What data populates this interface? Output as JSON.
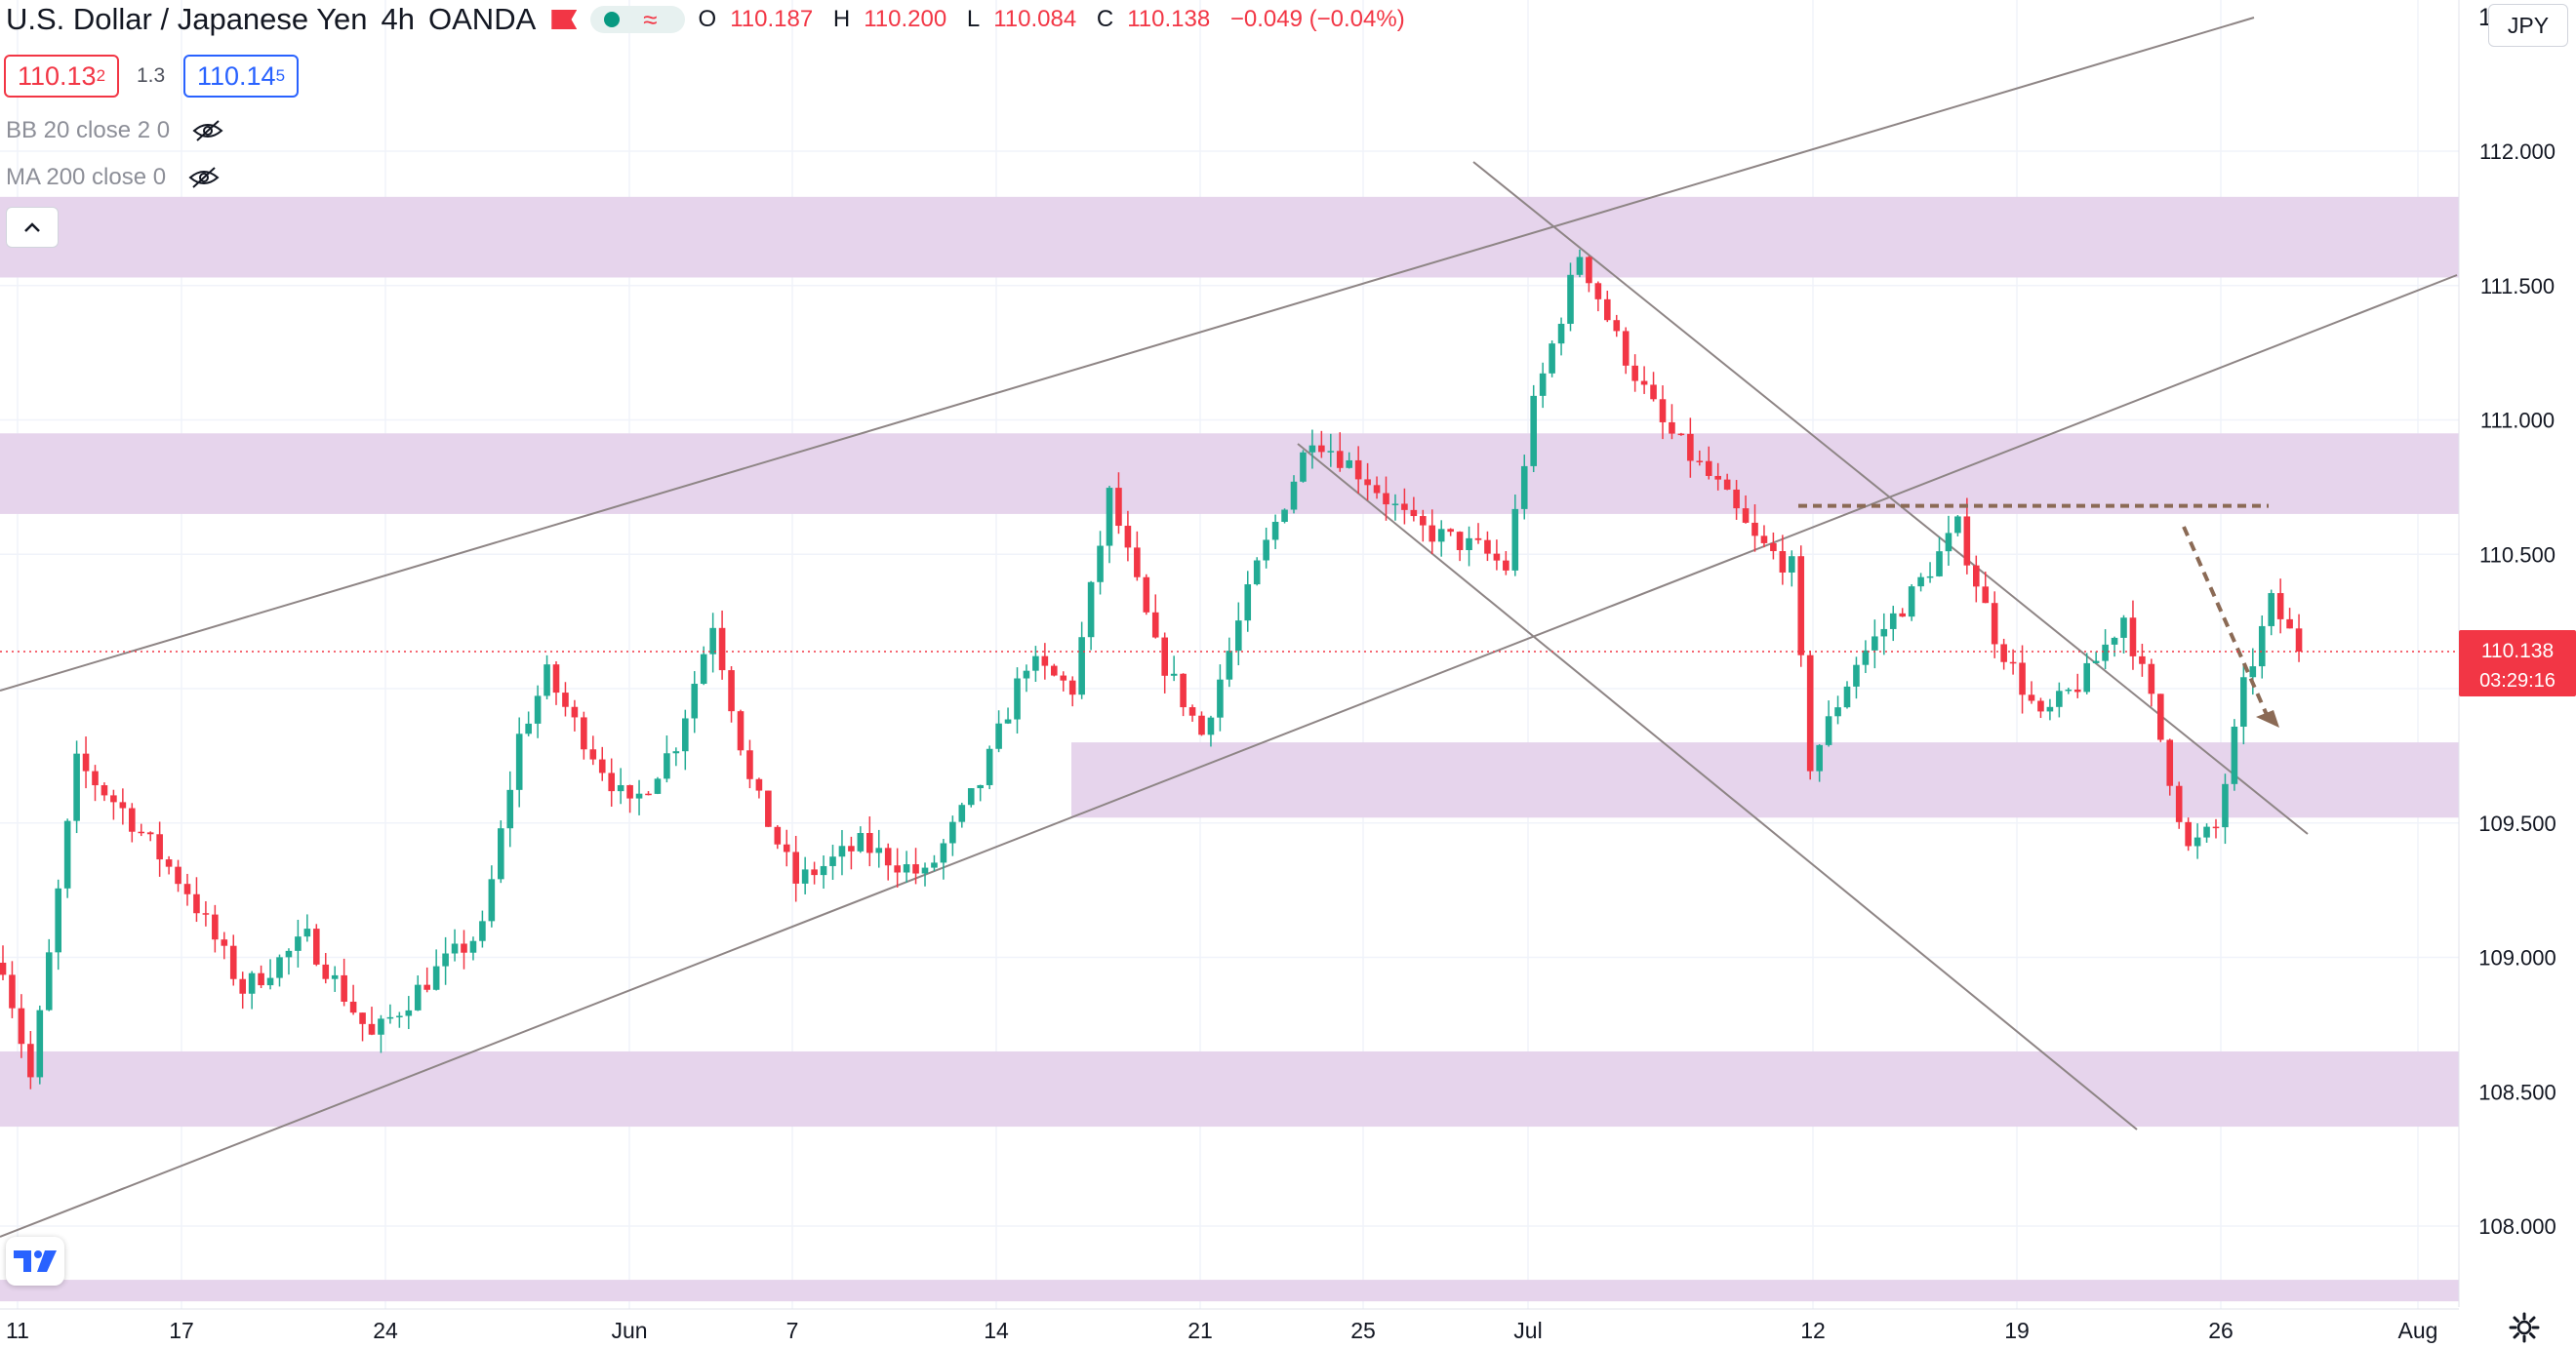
{
  "header": {
    "symbol": "U.S. Dollar / Japanese Yen",
    "interval": "4h",
    "broker": "OANDA",
    "open_label": "O",
    "open": "110.187",
    "high_label": "H",
    "high": "110.200",
    "low_label": "L",
    "low": "110.084",
    "close_label": "C",
    "close": "110.138",
    "change": "−0.049 (−0.04%)"
  },
  "quote": {
    "bid_main": "110.13",
    "bid_pip": "2",
    "spread": "1.3",
    "ask_main": "110.14",
    "ask_pip": "5"
  },
  "indicators": [
    {
      "label": "BB 20 close 2 0",
      "icon": "eye-hidden-icon"
    },
    {
      "label": "MA 200 close 0",
      "icon": "eye-hidden-icon"
    }
  ],
  "collapse_icon": "chevron-up-icon",
  "currency_button": "JPY",
  "price_axis_top_label": "1",
  "last_price": {
    "price": "110.138",
    "countdown": "03:29:16",
    "value": 110.138
  },
  "colors": {
    "up": "#22ab94",
    "down": "#f23645",
    "zone": "#e6d4ec",
    "trendline": "#8e8585",
    "projection": "#8b6a55",
    "last_price_bg": "#f23645"
  },
  "chart_data": {
    "type": "candlestick",
    "instrument": "USD/JPY",
    "timeframe": "4h",
    "y_axis": {
      "ticks": [
        108.0,
        108.5,
        109.0,
        109.5,
        110.0,
        110.5,
        111.0,
        111.5,
        112.0
      ],
      "range": [
        107.72,
        112.55
      ],
      "side": "right"
    },
    "x_axis": {
      "labels": [
        "11",
        "17",
        "24",
        "Jun",
        "7",
        "14",
        "21",
        "25",
        "Jul",
        "12",
        "19",
        "26",
        "Aug"
      ]
    },
    "price_path": [
      {
        "t": 0,
        "p": 108.98
      },
      {
        "t": 3,
        "p": 108.55
      },
      {
        "t": 5,
        "p": 109.0
      },
      {
        "t": 8,
        "p": 109.72
      },
      {
        "t": 13,
        "p": 109.55
      },
      {
        "t": 20,
        "p": 109.25
      },
      {
        "t": 26,
        "p": 108.88
      },
      {
        "t": 33,
        "p": 109.07
      },
      {
        "t": 40,
        "p": 108.7
      },
      {
        "t": 47,
        "p": 108.95
      },
      {
        "t": 52,
        "p": 109.1
      },
      {
        "t": 56,
        "p": 109.82
      },
      {
        "t": 59,
        "p": 110.05
      },
      {
        "t": 62,
        "p": 109.87
      },
      {
        "t": 68,
        "p": 109.55
      },
      {
        "t": 73,
        "p": 109.8
      },
      {
        "t": 77,
        "p": 110.25
      },
      {
        "t": 81,
        "p": 109.65
      },
      {
        "t": 86,
        "p": 109.28
      },
      {
        "t": 93,
        "p": 109.42
      },
      {
        "t": 100,
        "p": 109.3
      },
      {
        "t": 106,
        "p": 109.65
      },
      {
        "t": 111,
        "p": 110.1
      },
      {
        "t": 116,
        "p": 110.0
      },
      {
        "t": 120,
        "p": 110.72
      },
      {
        "t": 125,
        "p": 110.15
      },
      {
        "t": 130,
        "p": 109.83
      },
      {
        "t": 136,
        "p": 110.45
      },
      {
        "t": 142,
        "p": 110.95
      },
      {
        "t": 148,
        "p": 110.78
      },
      {
        "t": 153,
        "p": 110.6
      },
      {
        "t": 160,
        "p": 110.52
      },
      {
        "t": 163,
        "p": 110.45
      },
      {
        "t": 166,
        "p": 111.05
      },
      {
        "t": 171,
        "p": 111.62
      },
      {
        "t": 175,
        "p": 111.3
      },
      {
        "t": 180,
        "p": 110.98
      },
      {
        "t": 186,
        "p": 110.75
      },
      {
        "t": 190,
        "p": 110.55
      },
      {
        "t": 194,
        "p": 110.45
      },
      {
        "t": 196,
        "p": 109.72
      },
      {
        "t": 201,
        "p": 110.1
      },
      {
        "t": 207,
        "p": 110.35
      },
      {
        "t": 212,
        "p": 110.6
      },
      {
        "t": 216,
        "p": 110.2
      },
      {
        "t": 221,
        "p": 109.88
      },
      {
        "t": 226,
        "p": 110.05
      },
      {
        "t": 230,
        "p": 110.27
      },
      {
        "t": 233,
        "p": 109.95
      },
      {
        "t": 237,
        "p": 109.4
      },
      {
        "t": 240,
        "p": 109.48
      },
      {
        "t": 243,
        "p": 110.0
      },
      {
        "t": 246,
        "p": 110.32
      },
      {
        "t": 249,
        "p": 110.15
      }
    ],
    "zones": [
      {
        "from": 111.53,
        "to": 111.83
      },
      {
        "from": 110.65,
        "to": 110.95
      },
      {
        "from": 109.52,
        "to": 109.8
      },
      {
        "from": 108.37,
        "to": 108.65
      },
      {
        "from": 107.72,
        "to": 107.8
      }
    ],
    "resistance_line": 110.68,
    "projection": "down-arrow",
    "grid": true,
    "legend": "top-left"
  }
}
